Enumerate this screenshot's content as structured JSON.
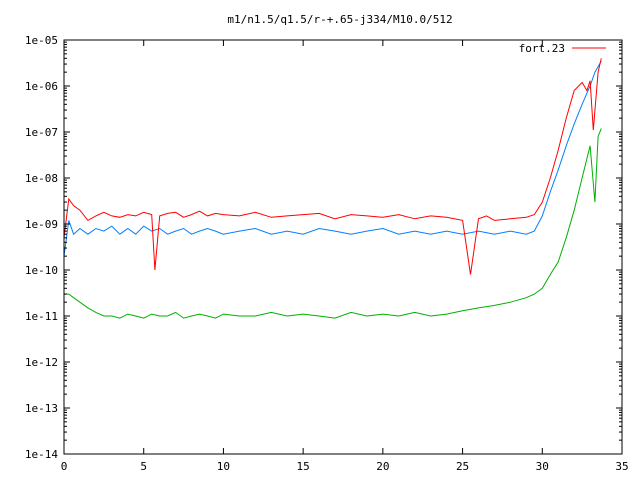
{
  "chart_data": {
    "type": "line",
    "title": "m1/n1.5/q1.5/r-+.65-j334/M10.0/512",
    "xlabel": "",
    "ylabel": "",
    "xlim": [
      0,
      35
    ],
    "ylim": [
      1e-14,
      1e-05
    ],
    "yscale": "log",
    "x_ticks": [
      0,
      5,
      10,
      15,
      20,
      25,
      30,
      35
    ],
    "x_tick_labels": [
      "0",
      "5",
      "10",
      "15",
      "20",
      "25",
      "30",
      "35"
    ],
    "y_ticks": [
      1e-14,
      1e-13,
      1e-12,
      1e-11,
      1e-10,
      1e-09,
      1e-08,
      1e-07,
      1e-06,
      1e-05
    ],
    "y_tick_labels": [
      "1e-14",
      "1e-13",
      "1e-12",
      "1e-11",
      "1e-10",
      "1e-09",
      "1e-08",
      "1e-07",
      "1e-06",
      "1e-05"
    ],
    "grid": false,
    "legend": {
      "position": "top-right",
      "entries": [
        "fort.23"
      ]
    },
    "series": [
      {
        "name": "fort.23",
        "color": "#ff0000",
        "x": [
          0,
          0.3,
          0.6,
          1.0,
          1.5,
          2.0,
          2.5,
          3.0,
          3.5,
          4.0,
          4.5,
          5.0,
          5.5,
          5.7,
          6.0,
          6.5,
          7.0,
          7.5,
          8.0,
          8.5,
          9.0,
          9.5,
          10.0,
          11.0,
          12.0,
          13.0,
          14.0,
          15.0,
          16.0,
          17.0,
          18.0,
          19.0,
          20.0,
          21.0,
          22.0,
          23.0,
          24.0,
          25.0,
          25.5,
          26.0,
          26.5,
          27.0,
          28.0,
          29.0,
          29.5,
          30.0,
          30.5,
          31.0,
          31.5,
          32.0,
          32.5,
          32.8,
          33.0,
          33.2,
          33.5,
          33.7
        ],
        "y": [
          5e-10,
          3.5e-09,
          2.5e-09,
          2e-09,
          1.2e-09,
          1.5e-09,
          1.8e-09,
          1.5e-09,
          1.4e-09,
          1.6e-09,
          1.5e-09,
          1.8e-09,
          1.6e-09,
          1e-10,
          1.5e-09,
          1.7e-09,
          1.8e-09,
          1.4e-09,
          1.6e-09,
          1.9e-09,
          1.5e-09,
          1.7e-09,
          1.6e-09,
          1.5e-09,
          1.8e-09,
          1.4e-09,
          1.5e-09,
          1.6e-09,
          1.7e-09,
          1.3e-09,
          1.6e-09,
          1.5e-09,
          1.4e-09,
          1.6e-09,
          1.3e-09,
          1.5e-09,
          1.4e-09,
          1.2e-09,
          8e-11,
          1.3e-09,
          1.5e-09,
          1.2e-09,
          1.3e-09,
          1.4e-09,
          1.6e-09,
          3e-09,
          1e-08,
          4e-08,
          2e-07,
          8e-07,
          1.2e-06,
          8e-07,
          1.3e-06,
          1.1e-07,
          2e-06,
          4e-06
        ]
      },
      {
        "name": "",
        "color": "#0080ff",
        "x": [
          0,
          0.3,
          0.6,
          1.0,
          1.5,
          2.0,
          2.5,
          3.0,
          3.5,
          4.0,
          4.5,
          5.0,
          5.5,
          6.0,
          6.5,
          7.0,
          7.5,
          8.0,
          8.5,
          9.0,
          9.5,
          10.0,
          11.0,
          12.0,
          13.0,
          14.0,
          15.0,
          16.0,
          17.0,
          18.0,
          19.0,
          20.0,
          21.0,
          22.0,
          23.0,
          24.0,
          25.0,
          26.0,
          27.0,
          28.0,
          29.0,
          29.5,
          30.0,
          30.5,
          31.0,
          31.5,
          32.0,
          32.5,
          33.0,
          33.3,
          33.7
        ],
        "y": [
          2e-10,
          1.2e-09,
          6e-10,
          8e-10,
          6e-10,
          8e-10,
          7e-10,
          9e-10,
          6e-10,
          8e-10,
          6e-10,
          9e-10,
          7e-10,
          8e-10,
          6e-10,
          7e-10,
          8e-10,
          6e-10,
          7e-10,
          8e-10,
          7e-10,
          6e-10,
          7e-10,
          8e-10,
          6e-10,
          7e-10,
          6e-10,
          8e-10,
          7e-10,
          6e-10,
          7e-10,
          8e-10,
          6e-10,
          7e-10,
          6e-10,
          7e-10,
          6e-10,
          7e-10,
          6e-10,
          7e-10,
          6e-10,
          7e-10,
          1.5e-09,
          5e-09,
          1.5e-08,
          5e-08,
          1.5e-07,
          4e-07,
          1e-06,
          2e-06,
          3.5e-06
        ]
      },
      {
        "name": "",
        "color": "#00b000",
        "x": [
          0,
          0.3,
          0.6,
          1.0,
          1.5,
          2.0,
          2.5,
          3.0,
          3.5,
          4.0,
          4.5,
          5.0,
          5.5,
          6.0,
          6.5,
          7.0,
          7.5,
          8.0,
          8.5,
          9.0,
          9.5,
          10.0,
          11.0,
          12.0,
          13.0,
          14.0,
          15.0,
          16.0,
          17.0,
          18.0,
          19.0,
          20.0,
          21.0,
          22.0,
          23.0,
          24.0,
          25.0,
          26.0,
          27.0,
          28.0,
          29.0,
          29.5,
          30.0,
          30.5,
          31.0,
          31.5,
          32.0,
          32.5,
          33.0,
          33.3,
          33.5,
          33.7
        ],
        "y": [
          3e-11,
          3e-11,
          2.5e-11,
          2e-11,
          1.5e-11,
          1.2e-11,
          1e-11,
          1e-11,
          9e-12,
          1.1e-11,
          1e-11,
          9e-12,
          1.1e-11,
          1e-11,
          1e-11,
          1.2e-11,
          9e-12,
          1e-11,
          1.1e-11,
          1e-11,
          9e-12,
          1.1e-11,
          1e-11,
          1e-11,
          1.2e-11,
          1e-11,
          1.1e-11,
          1e-11,
          9e-12,
          1.2e-11,
          1e-11,
          1.1e-11,
          1e-11,
          1.2e-11,
          1e-11,
          1.1e-11,
          1.3e-11,
          1.5e-11,
          1.7e-11,
          2e-11,
          2.5e-11,
          3e-11,
          4e-11,
          8e-11,
          1.5e-10,
          5e-10,
          2e-09,
          1e-08,
          5e-08,
          3e-09,
          8e-08,
          1.2e-07
        ]
      }
    ]
  }
}
